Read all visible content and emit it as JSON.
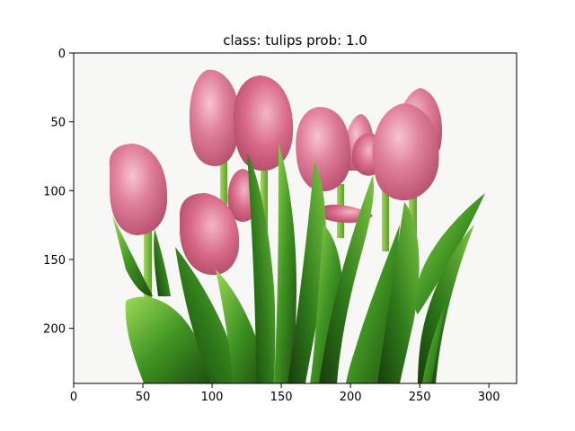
{
  "title": "class: tulips   prob: 1.0",
  "image": {
    "subject": "pink tulips bouquet",
    "width_units": 320,
    "height_units": 240,
    "background_color": "#f7f8f6",
    "petal_colors": [
      "#e17b97",
      "#c95a78",
      "#f2b0c2"
    ],
    "leaf_colors": [
      "#2f7d1c",
      "#4ea52a",
      "#8fd04a",
      "#1f4f12"
    ]
  },
  "axes": {
    "x_ticks": [
      0,
      50,
      100,
      150,
      200,
      250,
      300
    ],
    "y_ticks": [
      0,
      50,
      100,
      150,
      200
    ],
    "xlim": [
      0,
      320
    ],
    "ylim": [
      240,
      0
    ]
  }
}
